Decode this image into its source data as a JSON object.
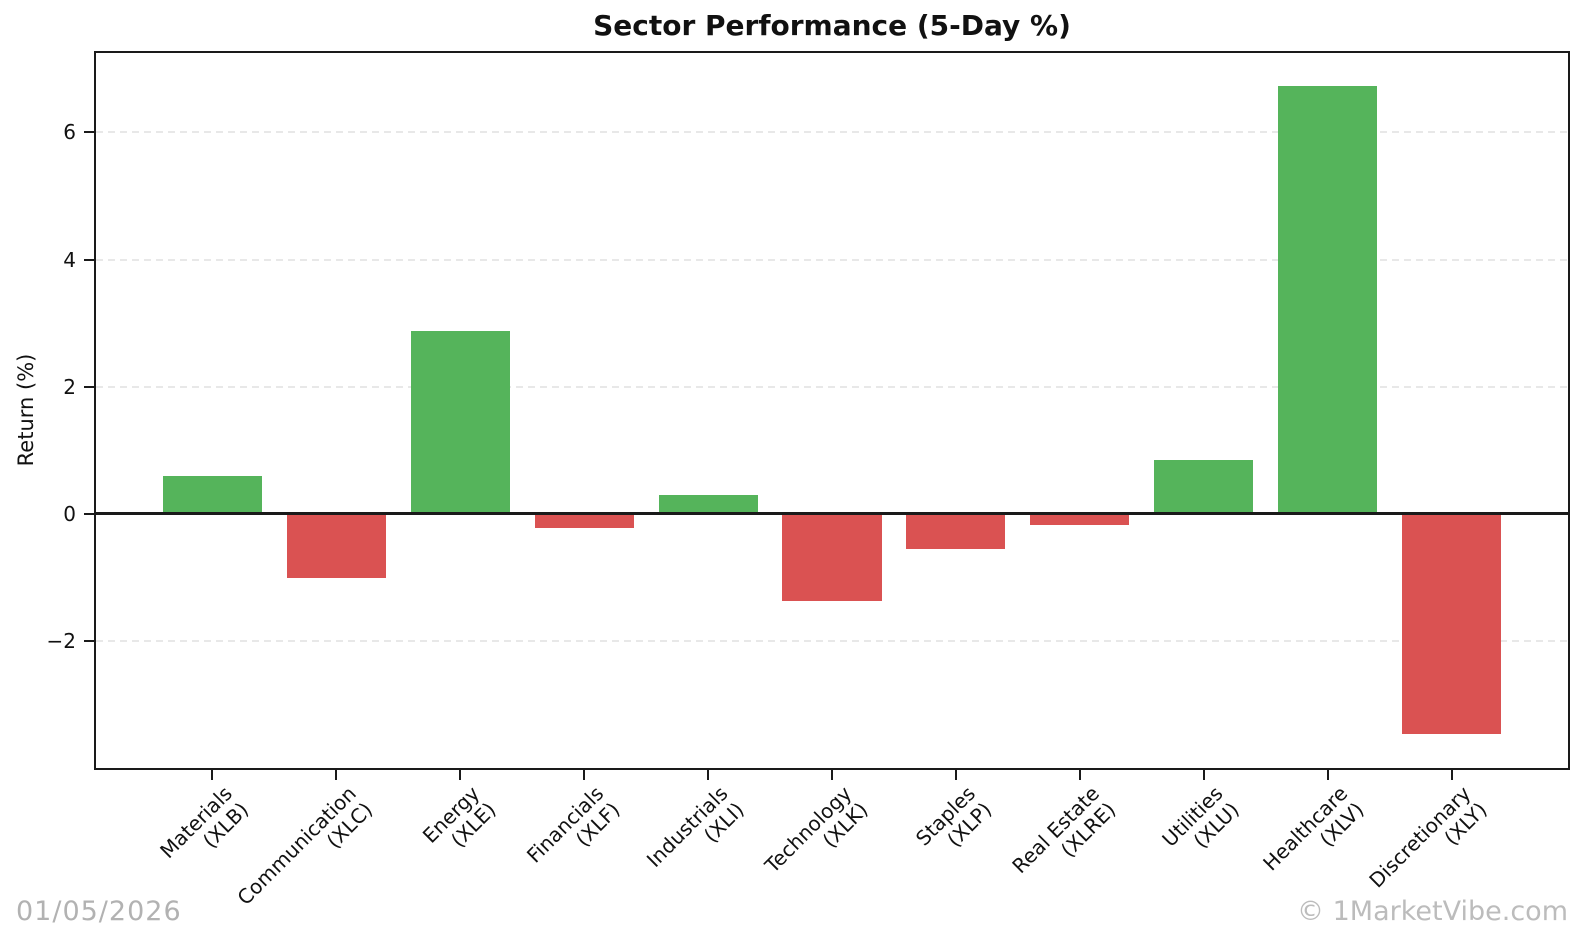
{
  "watermark_left": "01/05/2026",
  "watermark_right": "© 1MarketVibe.com",
  "chart_data": {
    "type": "bar",
    "title": "Sector Performance (5-Day %)",
    "xlabel": "",
    "ylabel": "Return (%)",
    "ylim": [
      -4.0,
      7.25
    ],
    "yticks": [
      6,
      4,
      2,
      0,
      -2
    ],
    "ytick_labels": [
      "6",
      "4",
      "2",
      "0",
      "−2"
    ],
    "grid": "horizontal-dashed",
    "legend": "none",
    "zero_line": true,
    "categories": [
      {
        "name": "Materials",
        "ticker": "(XLB)"
      },
      {
        "name": "Communication",
        "ticker": "(XLC)"
      },
      {
        "name": "Energy",
        "ticker": "(XLE)"
      },
      {
        "name": "Financials",
        "ticker": "(XLF)"
      },
      {
        "name": "Industrials",
        "ticker": "(XLI)"
      },
      {
        "name": "Technology",
        "ticker": "(XLK)"
      },
      {
        "name": "Staples",
        "ticker": "(XLP)"
      },
      {
        "name": "Real Estate",
        "ticker": "(XLRE)"
      },
      {
        "name": "Utilities",
        "ticker": "(XLU)"
      },
      {
        "name": "Healthcare",
        "ticker": "(XLV)"
      },
      {
        "name": "Discretionary",
        "ticker": "(XLY)"
      }
    ],
    "values": [
      0.6,
      -1.01,
      2.87,
      -0.22,
      0.29,
      -1.38,
      -0.55,
      -0.17,
      0.85,
      6.73,
      -3.47
    ],
    "colors": {
      "positive": "#55b45b",
      "negative": "#da5252",
      "grid": "#e8e8e8",
      "axis": "#1a1a1a",
      "watermark": "#b2b2b2"
    }
  }
}
